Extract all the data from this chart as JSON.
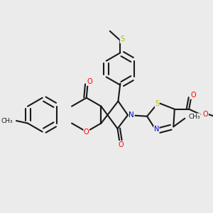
{
  "bg_color": "#ebebeb",
  "bond_color": "#1a1a1a",
  "O_color": "#ff0000",
  "N_color": "#0000cc",
  "S_color": "#bbbb00",
  "C_color": "#1a1a1a",
  "lw": 1.5,
  "doff": 0.012,
  "figsize": [
    3.0,
    3.0
  ],
  "dpi": 100,
  "xlim": [
    0.0,
    1.0
  ],
  "ylim": [
    0.0,
    1.0
  ]
}
